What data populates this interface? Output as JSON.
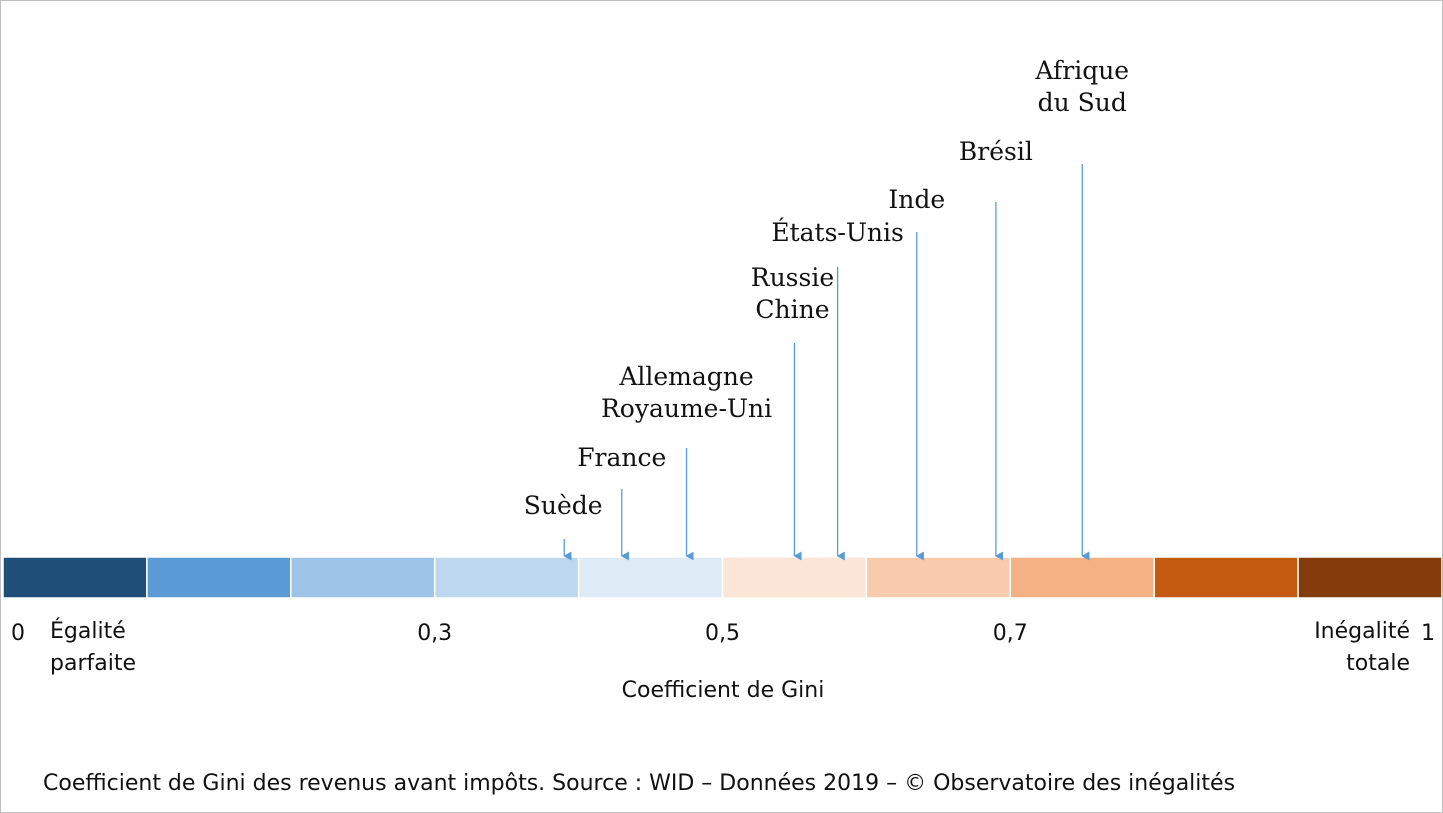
{
  "chart_data": {
    "type": "bar",
    "orientation": "horizontal-scale",
    "xlim": [
      0,
      1
    ],
    "xlabel": "Coefficient de Gini",
    "ticks": [
      {
        "value": 0,
        "label": "0"
      },
      {
        "value": 0.3,
        "label": "0,3"
      },
      {
        "value": 0.5,
        "label": "0,5"
      },
      {
        "value": 0.7,
        "label": "0,7"
      },
      {
        "value": 1,
        "label": "1"
      }
    ],
    "end_labels": {
      "left": [
        "Égalité",
        "parfaite"
      ],
      "right": [
        "Inégalité",
        "totale"
      ]
    },
    "segments": [
      {
        "from": 0.0,
        "to": 0.1,
        "color": "#1f4e79"
      },
      {
        "from": 0.1,
        "to": 0.2,
        "color": "#5b9bd5"
      },
      {
        "from": 0.2,
        "to": 0.3,
        "color": "#9dc3e6"
      },
      {
        "from": 0.3,
        "to": 0.4,
        "color": "#bdd7ee"
      },
      {
        "from": 0.4,
        "to": 0.5,
        "color": "#deebf7"
      },
      {
        "from": 0.5,
        "to": 0.6,
        "color": "#fbe5d6"
      },
      {
        "from": 0.6,
        "to": 0.7,
        "color": "#f8cbad"
      },
      {
        "from": 0.7,
        "to": 0.8,
        "color": "#f4b183"
      },
      {
        "from": 0.8,
        "to": 0.9,
        "color": "#c55a11"
      },
      {
        "from": 0.9,
        "to": 1.0,
        "color": "#843c0c"
      }
    ],
    "arrow_color": "#5b9bd5",
    "countries": [
      {
        "key": "suede",
        "label": [
          "Suède"
        ],
        "value": 0.39
      },
      {
        "key": "france",
        "label": [
          "France"
        ],
        "value": 0.43
      },
      {
        "key": "allemagne-royaume-uni",
        "label": [
          "Allemagne",
          "Royaume-Uni"
        ],
        "value": 0.475
      },
      {
        "key": "russie-chine",
        "label": [
          "Russie",
          "Chine"
        ],
        "value": 0.55
      },
      {
        "key": "etats-unis",
        "label": [
          "États-Unis"
        ],
        "value": 0.58
      },
      {
        "key": "inde",
        "label": [
          "Inde"
        ],
        "value": 0.635
      },
      {
        "key": "bresil",
        "label": [
          "Brésil"
        ],
        "value": 0.69
      },
      {
        "key": "afrique-du-sud",
        "label": [
          "Afrique",
          "du Sud"
        ],
        "value": 0.75
      }
    ]
  },
  "caption": "Coefficient de Gini des revenus avant impôts. Source : WID – Données 2019 – © Observatoire des inégalités"
}
